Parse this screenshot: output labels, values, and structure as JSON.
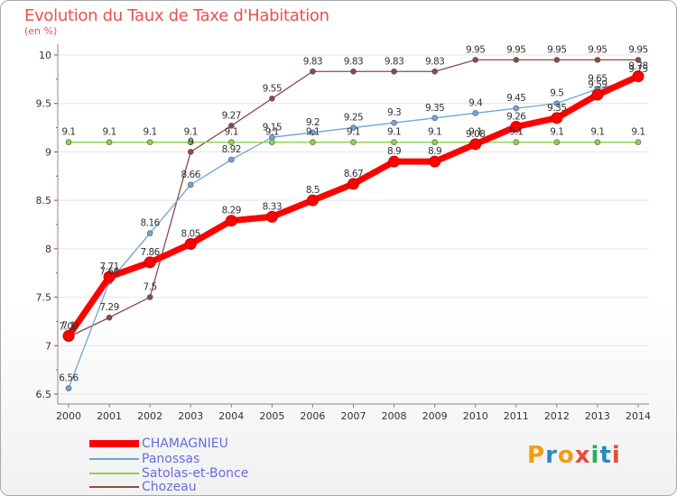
{
  "header": {
    "title": "Evolution du Taux de Taxe d'Habitation",
    "unit": "(en %)"
  },
  "brand": {
    "text": "Proxiti",
    "colors": [
      "#f39c12",
      "#2e86c1",
      "#f39c12",
      "#e74c3c",
      "#27ae60",
      "#2e86c1",
      "#e74c3c"
    ]
  },
  "colors": {
    "title": "#e8524b",
    "axis": "#8a8a8a",
    "grid": "#e4e4e4",
    "legend_text": "#6a6ade"
  },
  "chart_data": {
    "type": "line",
    "title": "Evolution du Taux de Taxe d'Habitation",
    "ylabel": "(en %)",
    "xlabel": "",
    "x": [
      "2000",
      "2001",
      "2002",
      "2003",
      "2004",
      "2005",
      "2006",
      "2007",
      "2008",
      "2009",
      "2010",
      "2011",
      "2012",
      "2013",
      "2014"
    ],
    "ylim": [
      6.5,
      10
    ],
    "yticks": [
      "6.5",
      "7",
      "7.5",
      "8",
      "8.5",
      "9",
      "9.5",
      "10"
    ],
    "grid": "horizontal",
    "legend_position": "bottom-left",
    "series": [
      {
        "name": "CHAMAGNIEU",
        "color": "#ff0000",
        "values": [
          7.1,
          7.71,
          7.86,
          8.05,
          8.29,
          8.33,
          8.5,
          8.67,
          8.9,
          8.9,
          9.08,
          9.26,
          9.35,
          9.59,
          9.78
        ],
        "labels": [
          "7.1",
          "7.71",
          "7.86",
          "8.05",
          "8.29",
          "8.33",
          "8.5",
          "8.67",
          "8.9",
          "8.9",
          "9.08",
          "9.26",
          "9.35",
          "9.59",
          "9.78"
        ]
      },
      {
        "name": "Panossas",
        "color": "#6ca6d9",
        "values": [
          6.56,
          7.66,
          8.16,
          8.66,
          8.92,
          9.15,
          9.2,
          9.25,
          9.3,
          9.35,
          9.4,
          9.45,
          9.5,
          9.65,
          9.75
        ],
        "labels": [
          "6.56",
          "7.66",
          "8.16",
          "8.66",
          "8.92",
          "9.15",
          "9.2",
          "9.25",
          "9.3",
          "9.35",
          "9.4",
          "9.45",
          "9.5",
          "9.65",
          "9.75"
        ]
      },
      {
        "name": "Satolas-et-Bonce",
        "color": "#90d050",
        "values": [
          9.1,
          9.1,
          9.1,
          9.1,
          9.1,
          9.1,
          9.1,
          9.1,
          9.1,
          9.1,
          9.1,
          9.1,
          9.1,
          9.1,
          9.1
        ],
        "labels": [
          "9.1",
          "9.1",
          "9.1",
          "9.1",
          "9.1",
          "9.1",
          "9.1",
          "9.1",
          "9.1",
          "9.1",
          "9.1",
          "9.1",
          "9.1",
          "9.1",
          "9.1"
        ]
      },
      {
        "name": "Chozeau",
        "color": "#8b4a4a",
        "values": [
          7.09,
          7.29,
          7.5,
          9.0,
          9.27,
          9.55,
          9.83,
          9.83,
          9.83,
          9.83,
          9.95,
          9.95,
          9.95,
          9.95,
          9.95
        ],
        "labels": [
          "7.09",
          "7.29",
          "7.5",
          "9",
          "9.27",
          "9.55",
          "9.83",
          "9.83",
          "9.83",
          "9.83",
          "9.95",
          "9.95",
          "9.95",
          "9.95",
          "9.95"
        ]
      }
    ]
  }
}
